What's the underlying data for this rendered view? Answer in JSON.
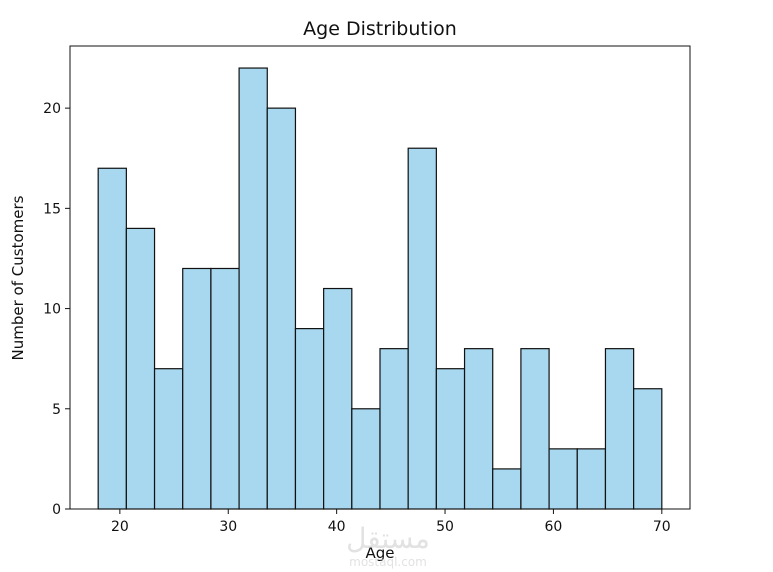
{
  "chart_data": {
    "type": "bar",
    "title": "Age Distribution",
    "xlabel": "Age",
    "ylabel": "Number of Customers",
    "xlim": [
      15.4,
      72.6
    ],
    "ylim": [
      0,
      23.1
    ],
    "xticks": [
      20,
      30,
      40,
      50,
      60,
      70
    ],
    "yticks": [
      0,
      5,
      10,
      15,
      20
    ],
    "bin_edges": [
      18,
      20.6,
      23.2,
      25.8,
      28.4,
      31,
      33.6,
      36.2,
      38.8,
      41.4,
      44,
      46.6,
      49.2,
      51.8,
      54.4,
      57,
      59.6,
      62.2,
      64.8,
      67.4,
      70
    ],
    "values": [
      17,
      14,
      7,
      12,
      12,
      22,
      20,
      9,
      11,
      5,
      8,
      18,
      7,
      8,
      2,
      8,
      3,
      3,
      8,
      6
    ],
    "bar_color": "#a8d8ef",
    "edge_color": "#111111",
    "grid": false
  },
  "watermark": {
    "text_main": "مستقل",
    "text_sub": "mostaql.com"
  }
}
